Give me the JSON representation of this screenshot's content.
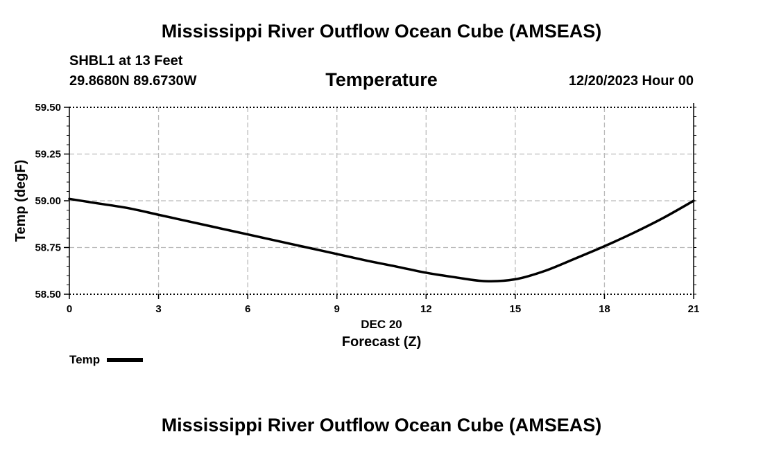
{
  "header": {
    "title": "Mississippi River Outflow Ocean Cube (AMSEAS)",
    "station": "SHBL1 at 13 Feet",
    "coords": "29.8680N  89.6730W",
    "variable": "Temperature",
    "datetime": "12/20/2023 Hour 00"
  },
  "footer": {
    "title": "Mississippi River Outflow Ocean Cube (AMSEAS)"
  },
  "legend": {
    "label": "Temp"
  },
  "chart_data": {
    "type": "line",
    "title": "Temperature",
    "xlabel": "Forecast (Z)",
    "xlabel_date": "DEC 20",
    "ylabel": "Temp (degF)",
    "xlim": [
      0,
      21
    ],
    "ylim": [
      58.5,
      59.5
    ],
    "x_ticks": [
      "0",
      "3",
      "6",
      "9",
      "12",
      "15",
      "18",
      "21"
    ],
    "y_ticks": [
      "58.50",
      "58.75",
      "59.00",
      "59.25",
      "59.50"
    ],
    "grid": true,
    "legend_position": "bottom-left",
    "series": [
      {
        "name": "Temp",
        "color": "#000000",
        "x": [
          0,
          1,
          2,
          3,
          4,
          5,
          6,
          7,
          8,
          9,
          10,
          11,
          12,
          13,
          14,
          15,
          16,
          17,
          18,
          19,
          20,
          21
        ],
        "y": [
          59.01,
          58.985,
          58.96,
          58.925,
          58.89,
          58.855,
          58.82,
          58.785,
          58.75,
          58.715,
          58.68,
          58.648,
          58.615,
          58.59,
          58.57,
          58.58,
          58.625,
          58.69,
          58.757,
          58.83,
          58.91,
          59.0
        ]
      }
    ]
  }
}
